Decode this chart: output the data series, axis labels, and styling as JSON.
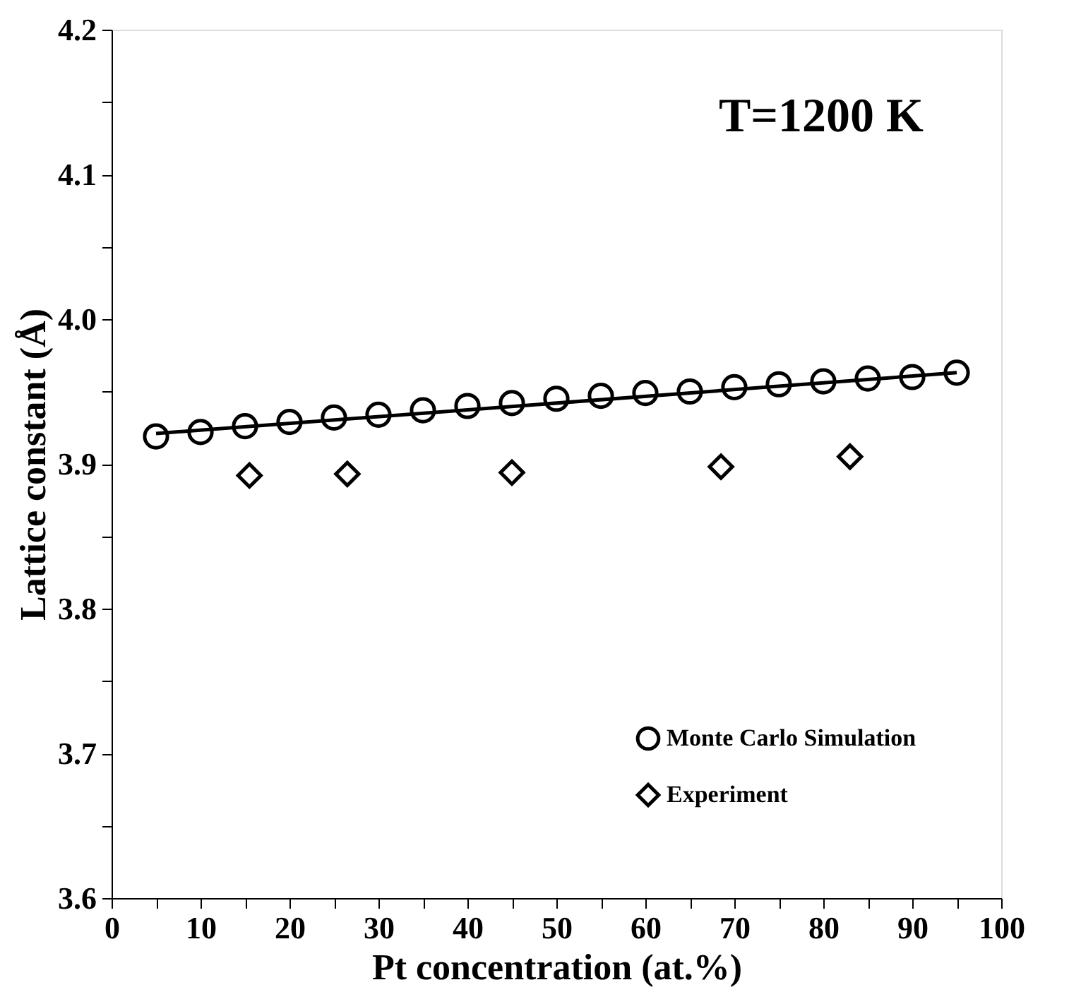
{
  "chart_data": {
    "type": "scatter",
    "xlabel": "Pt concentration (at.%)",
    "ylabel": "Lattice constant (Å)",
    "annotations": [
      "T=1200 K"
    ],
    "xlim": [
      0,
      100
    ],
    "ylim": [
      3.6,
      4.2
    ],
    "xticks": [
      0,
      {
        "value": 5,
        "label": null
      },
      10,
      {
        "value": 15,
        "label": null
      },
      20,
      {
        "value": 25,
        "label": null
      },
      30,
      {
        "value": 35,
        "label": null
      },
      40,
      {
        "value": 45,
        "label": null
      },
      50,
      {
        "value": 55,
        "label": null
      },
      60,
      {
        "value": 65,
        "label": null
      },
      70,
      {
        "value": 75,
        "label": null
      },
      80,
      {
        "value": 85,
        "label": null
      },
      90,
      {
        "value": 95,
        "label": null
      },
      100
    ],
    "yticks": [
      3.6,
      {
        "value": 3.65,
        "label": null
      },
      3.7,
      {
        "value": 3.75,
        "label": null
      },
      3.8,
      {
        "value": 3.85,
        "label": null
      },
      3.9,
      {
        "value": 3.95,
        "label": null
      },
      {
        "value": 4.0,
        "label": "4.0"
      },
      {
        "value": 4.05,
        "label": null
      },
      4.1,
      {
        "value": 4.15,
        "label": null
      },
      4.2
    ],
    "grid": false,
    "legend": "bottom right",
    "series": [
      {
        "name": "Monte Carlo Simulation",
        "marker": "circle",
        "color": "#000000",
        "x": [
          5,
          10,
          15,
          20,
          25,
          30,
          35,
          40,
          45,
          50,
          55,
          60,
          65,
          70,
          75,
          80,
          85,
          90,
          95
        ],
        "values": [
          3.919,
          3.922,
          3.926,
          3.929,
          3.932,
          3.934,
          3.937,
          3.94,
          3.942,
          3.945,
          3.947,
          3.949,
          3.95,
          3.953,
          3.955,
          3.957,
          3.959,
          3.96,
          3.963
        ]
      },
      {
        "name": "Experiment",
        "marker": "diamond",
        "color": "#000000",
        "x": [
          15.5,
          26.5,
          45,
          68.5,
          83
        ],
        "values": [
          3.892,
          3.893,
          3.894,
          3.898,
          3.905
        ]
      },
      {
        "type": "line",
        "line_style": "solid",
        "color": "#000000",
        "x": [
          5,
          95
        ],
        "values": [
          3.921,
          3.963
        ]
      }
    ]
  }
}
